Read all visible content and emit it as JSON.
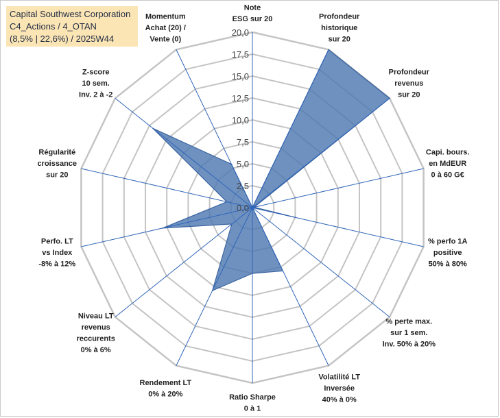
{
  "title": {
    "line1": "Capital Southwest Corporation",
    "line2": "C4_Actions / 4_OTAN",
    "line3": "(8,5% | 22,6%) / 2025W44"
  },
  "colors": {
    "fill": "#4f79b2",
    "stroke": "#3b64a1",
    "grid": "#c4c4c4",
    "spoke": "#2f65b8",
    "title_bg": "#fbe5b4"
  },
  "chart_data": {
    "type": "radar",
    "title": "",
    "rmin": 0,
    "rmax": 20,
    "tick_labels": [
      "0,0",
      "2,5",
      "5,0",
      "7,5",
      "10,0",
      "12,5",
      "15,0",
      "17,5",
      "20,0"
    ],
    "categories": [
      [
        "Note",
        "ESG sur 20"
      ],
      [
        "Profondeur",
        "historique",
        "sur 20"
      ],
      [
        "Profondeur",
        "revenus",
        "sur 20"
      ],
      [
        "Capi. bours.",
        "en MdEUR",
        "0 à 60 G€"
      ],
      [
        "% perfo 1A",
        "positive",
        "50% à 80%"
      ],
      [
        "% perte max.",
        "sur 1 sem.",
        "Inv. 50% à 20%"
      ],
      [
        "Volatilité LT",
        "Inversée",
        "40% à 0%"
      ],
      [
        "Ratio Sharpe",
        "0 à 1"
      ],
      [
        "Rendement LT",
        "0% à 20%"
      ],
      [
        "Niveau LT",
        "revenus",
        "reccurents",
        "0% à 6%"
      ],
      [
        "Perfo. LT",
        "vs Index",
        "-8% à 12%"
      ],
      [
        "Régularité",
        "croissance",
        "sur 20"
      ],
      [
        "Z-score",
        "10 sem.",
        "Inv. 2 à -2"
      ],
      [
        "Momentum",
        "Achat (20) /",
        "Vente (0)"
      ]
    ],
    "series": [
      {
        "name": "Capital Southwest Corporation",
        "values": [
          0,
          20,
          20,
          0.2,
          5.0,
          0,
          8.0,
          7.5,
          10.5,
          3.0,
          10.5,
          3.0,
          14.5,
          5.5
        ]
      }
    ]
  }
}
